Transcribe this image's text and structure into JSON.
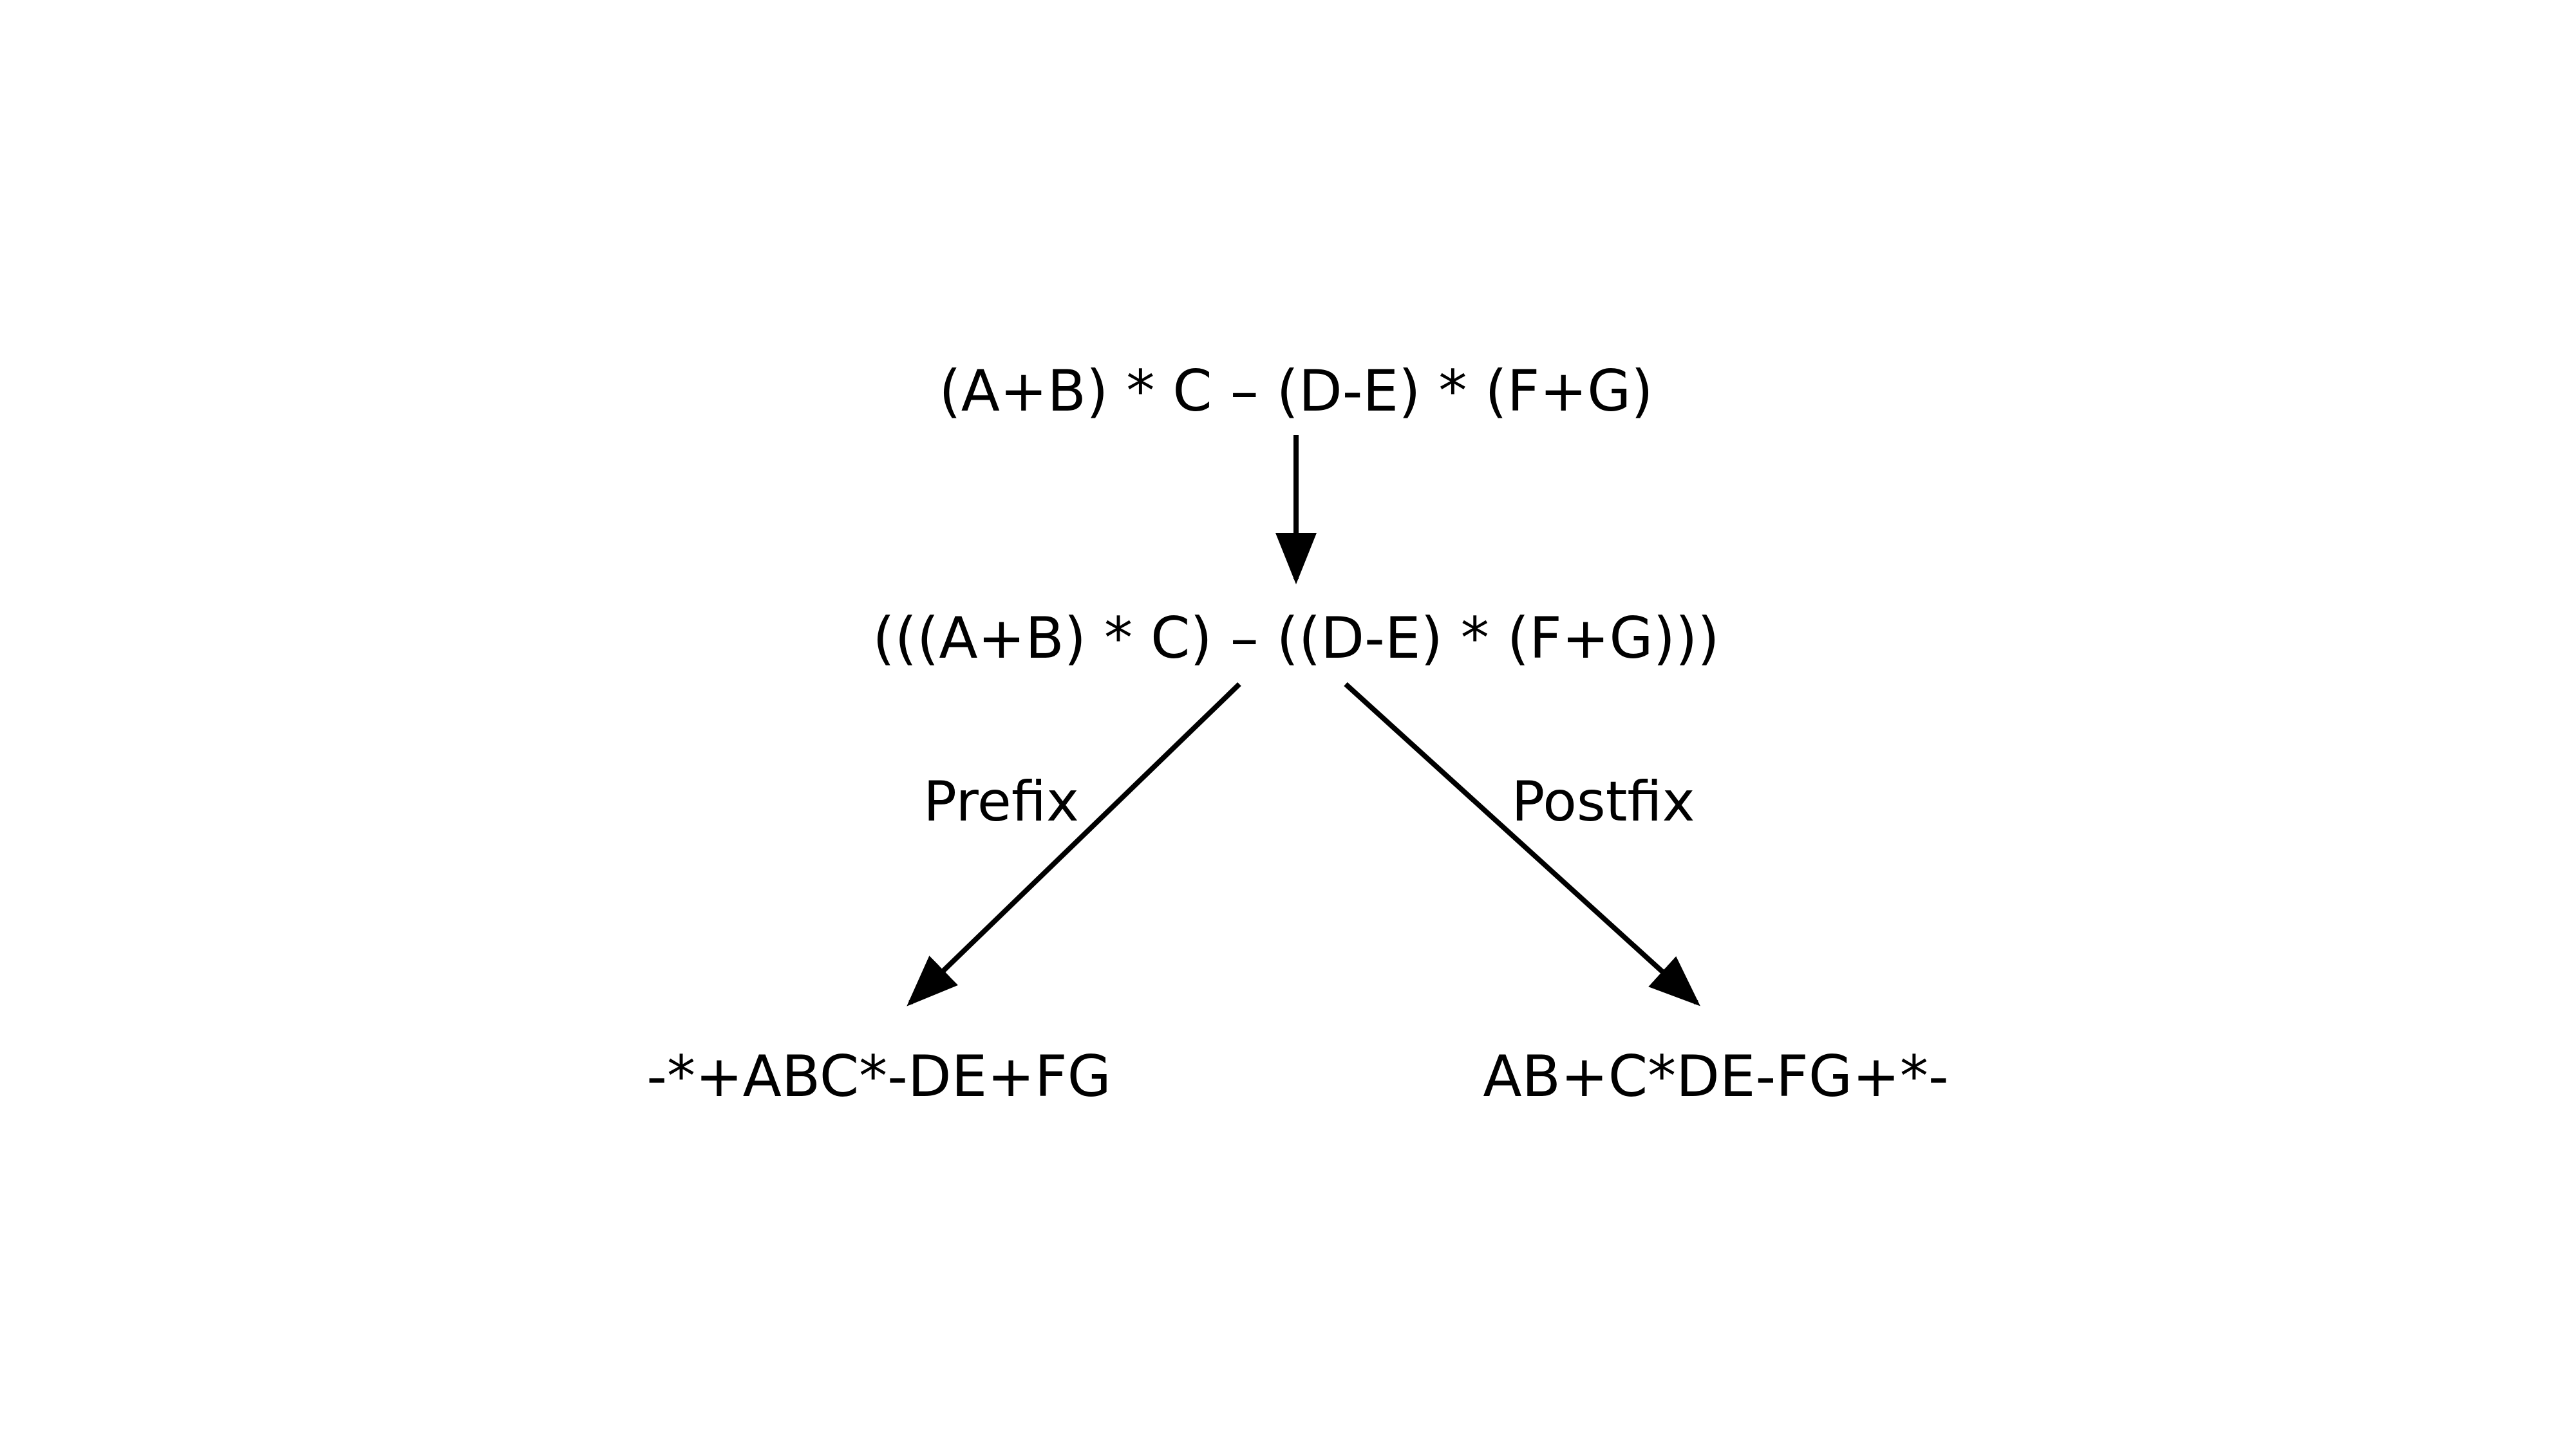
{
  "expressions": {
    "infix": "(A+B) * C – (D-E) * (F+G)",
    "fully_parenthesized": "(((A+B) * C) – ((D-E) * (F+G)))",
    "prefix": "-*+ABC*-DE+FG",
    "postfix": "AB+C*DE-FG+*-"
  },
  "labels": {
    "prefix": "Prefix",
    "postfix": "Postfix"
  },
  "colors": {
    "text": "#000000",
    "arrow": "#000000",
    "background": "#ffffff"
  }
}
